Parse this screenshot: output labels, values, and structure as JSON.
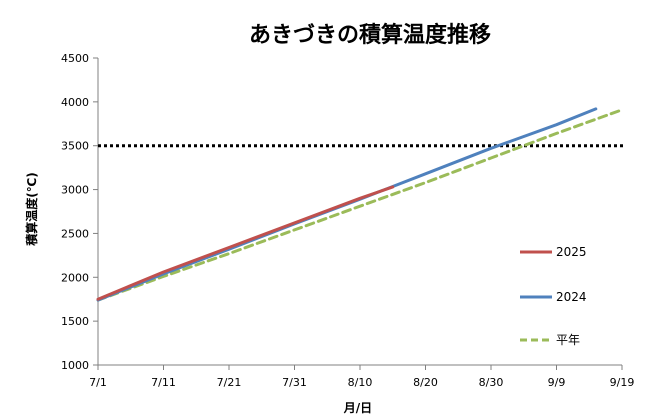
{
  "chart_data": {
    "type": "line",
    "title": "あきづきの積算温度推移",
    "xlabel": "月/日",
    "ylabel": "積算温度(℃)",
    "ylim": [
      1000,
      4500
    ],
    "yticks": [
      1000,
      1500,
      2000,
      2500,
      3000,
      3500,
      4000,
      4500
    ],
    "xticks": [
      "7/1",
      "7/11",
      "7/21",
      "7/31",
      "8/10",
      "8/20",
      "8/30",
      "9/9",
      "9/19"
    ],
    "x_start": "7/1",
    "x_end": "9/19",
    "reference_line": {
      "value": 3500,
      "style": "dotted",
      "color": "#000000"
    },
    "legend_position": "right",
    "grid": false,
    "series": [
      {
        "name": "2025",
        "color": "#c0504d",
        "style": "solid",
        "x": [
          "7/1",
          "7/11",
          "7/21",
          "7/31",
          "8/10",
          "8/15"
        ],
        "values": [
          1750,
          2060,
          2340,
          2620,
          2900,
          3030
        ]
      },
      {
        "name": "2024",
        "color": "#4f81bd",
        "style": "solid",
        "x": [
          "7/1",
          "7/11",
          "7/21",
          "7/31",
          "8/10",
          "8/20",
          "8/30",
          "9/9",
          "9/15"
        ],
        "values": [
          1740,
          2040,
          2320,
          2610,
          2890,
          3180,
          3470,
          3740,
          3920
        ]
      },
      {
        "name": "平年",
        "color": "#9bbb59",
        "style": "dashed",
        "x": [
          "7/1",
          "7/11",
          "7/21",
          "7/31",
          "8/10",
          "8/20",
          "8/30",
          "9/9",
          "9/19"
        ],
        "values": [
          1740,
          2010,
          2270,
          2540,
          2810,
          3080,
          3360,
          3640,
          3910
        ]
      }
    ]
  }
}
